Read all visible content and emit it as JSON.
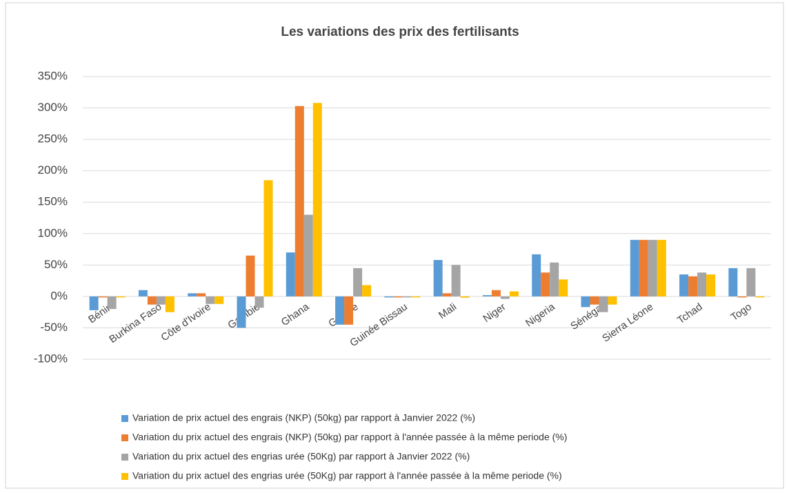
{
  "chart_data": {
    "type": "bar",
    "title": "Les variations  des prix des fertilisants",
    "categories": [
      "Bénin",
      "Burkina Faso",
      "Côte d'Ivoire",
      "Gambie",
      "Ghana",
      "Guinée",
      "Guinée Bissau",
      "Mali",
      "Niger",
      "Nigeria",
      "Sénégal",
      "Sierra Léone",
      "Tchad",
      "Togo"
    ],
    "series": [
      {
        "name": "Variation de prix actuel  des engrais (NKP) (50kg) par rapport à Janvier 2022 (%)",
        "color": "#5b9bd5",
        "values": [
          -22,
          10,
          5,
          -50,
          70,
          -45,
          -1,
          58,
          2,
          67,
          -17,
          90,
          35,
          45
        ]
      },
      {
        "name": "Variation du prix  actuel des engrais (NKP) (50kg) par rapport à l'année passée à la même periode (%)",
        "color": "#ed7d31",
        "values": [
          -1,
          -13,
          5,
          65,
          303,
          -45,
          -1,
          5,
          10,
          38,
          -13,
          90,
          32,
          -1
        ]
      },
      {
        "name": "Variation du prix actuel des engrias urée (50Kg) par rapport à Janvier 2022 (%)",
        "color": "#a5a5a5",
        "values": [
          -20,
          -13,
          -12,
          -18,
          130,
          45,
          -1,
          50,
          -4,
          54,
          -25,
          90,
          38,
          45
        ]
      },
      {
        "name": "Variation du prix actuel des engrias urée (50Kg) par rapport à l'année passée à la même periode (%)",
        "color": "#ffc000",
        "values": [
          -1,
          -25,
          -12,
          185,
          308,
          18,
          -1,
          -2,
          8,
          27,
          -13,
          90,
          35,
          -1
        ]
      }
    ],
    "ylim": [
      -100,
      350
    ],
    "yticks": [
      {
        "value": -100,
        "label": "-100%"
      },
      {
        "value": -50,
        "label": "-50%"
      },
      {
        "value": 0,
        "label": "0%"
      },
      {
        "value": 50,
        "label": "50%"
      },
      {
        "value": 100,
        "label": "100%"
      },
      {
        "value": 150,
        "label": "150%"
      },
      {
        "value": 200,
        "label": "200%"
      },
      {
        "value": 250,
        "label": "250%"
      },
      {
        "value": 300,
        "label": "300%"
      },
      {
        "value": 350,
        "label": "350%"
      }
    ],
    "grid": true
  }
}
